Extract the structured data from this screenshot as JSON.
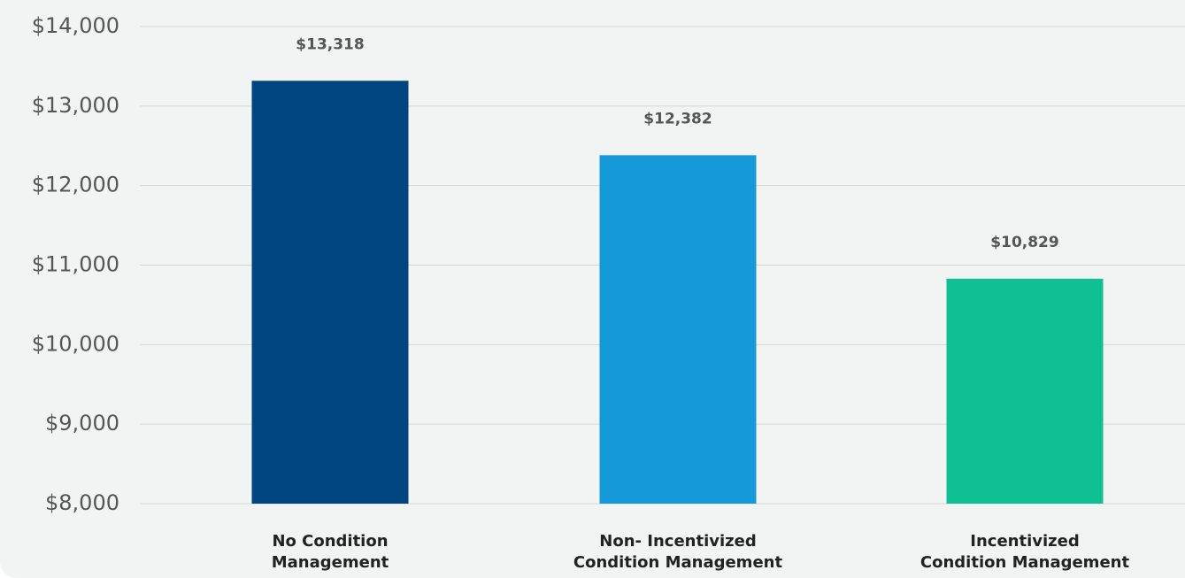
{
  "chart_data": {
    "type": "bar",
    "categories": [
      [
        "No Condition",
        "Management"
      ],
      [
        "Non- Incentivized",
        "Condition Management"
      ],
      [
        "Incentivized",
        "Condition Management"
      ]
    ],
    "values": [
      13318,
      12382,
      10829
    ],
    "value_labels": [
      "$13,318",
      "$12,382",
      "$10,829"
    ],
    "colors": [
      "#004580",
      "#1699d8",
      "#10c093"
    ],
    "ylim": [
      8000,
      14000
    ],
    "yticks": [
      14000,
      13000,
      12000,
      11000,
      10000,
      9000,
      8000
    ],
    "ytick_labels": [
      "$14,000",
      "$13,000",
      "$12,000",
      "$11,000",
      "$10,000",
      "$9,000",
      "$8,000"
    ],
    "grid": true,
    "title": "",
    "xlabel": "",
    "ylabel": ""
  }
}
